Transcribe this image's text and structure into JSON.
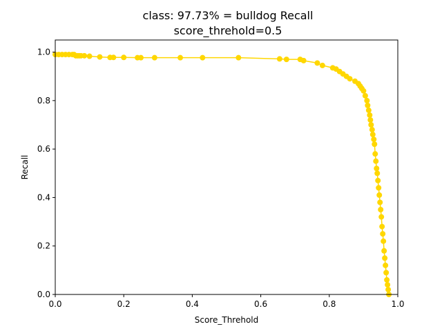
{
  "chart_data": {
    "type": "line",
    "title_line1": "class: 97.73% = bulldog Recall",
    "title_line2": "score_threhold=0.5",
    "xlabel": "Score_Threhold",
    "ylabel": "Recall",
    "xlim": [
      0.0,
      1.0
    ],
    "ylim": [
      0.0,
      1.05
    ],
    "xticks": [
      "0.0",
      "0.2",
      "0.4",
      "0.6",
      "0.8",
      "1.0"
    ],
    "yticks": [
      "0.0",
      "0.2",
      "0.4",
      "0.6",
      "0.8",
      "1.0"
    ],
    "grid": false,
    "line_color": "#FFD700",
    "marker": "circle",
    "series": [
      {
        "x": [
          0.0,
          0.01,
          0.02,
          0.03,
          0.04,
          0.05,
          0.055,
          0.06,
          0.065,
          0.07,
          0.075,
          0.085,
          0.1,
          0.13,
          0.16,
          0.17,
          0.2,
          0.24,
          0.25,
          0.29,
          0.365,
          0.43,
          0.535,
          0.655,
          0.675,
          0.715,
          0.725,
          0.765,
          0.78,
          0.81,
          0.82,
          0.83,
          0.84,
          0.85,
          0.86,
          0.875,
          0.885,
          0.89,
          0.895,
          0.9,
          0.905,
          0.91,
          0.912,
          0.915,
          0.918,
          0.92,
          0.922,
          0.925,
          0.927,
          0.93,
          0.932,
          0.934,
          0.936,
          0.938,
          0.94,
          0.942,
          0.944,
          0.946,
          0.948,
          0.95,
          0.952,
          0.954,
          0.956,
          0.958,
          0.96,
          0.962,
          0.964,
          0.966,
          0.968,
          0.97,
          0.972,
          0.974
        ],
        "y": [
          0.99,
          0.99,
          0.99,
          0.99,
          0.99,
          0.99,
          0.99,
          0.985,
          0.985,
          0.985,
          0.985,
          0.985,
          0.983,
          0.98,
          0.978,
          0.978,
          0.978,
          0.977,
          0.977,
          0.977,
          0.977,
          0.977,
          0.977,
          0.972,
          0.97,
          0.97,
          0.965,
          0.955,
          0.945,
          0.935,
          0.93,
          0.92,
          0.91,
          0.9,
          0.89,
          0.88,
          0.87,
          0.86,
          0.85,
          0.84,
          0.82,
          0.8,
          0.78,
          0.76,
          0.74,
          0.72,
          0.7,
          0.68,
          0.66,
          0.64,
          0.62,
          0.58,
          0.55,
          0.52,
          0.5,
          0.47,
          0.44,
          0.41,
          0.38,
          0.35,
          0.32,
          0.28,
          0.25,
          0.22,
          0.18,
          0.15,
          0.12,
          0.09,
          0.06,
          0.04,
          0.02,
          0.0
        ]
      }
    ]
  }
}
